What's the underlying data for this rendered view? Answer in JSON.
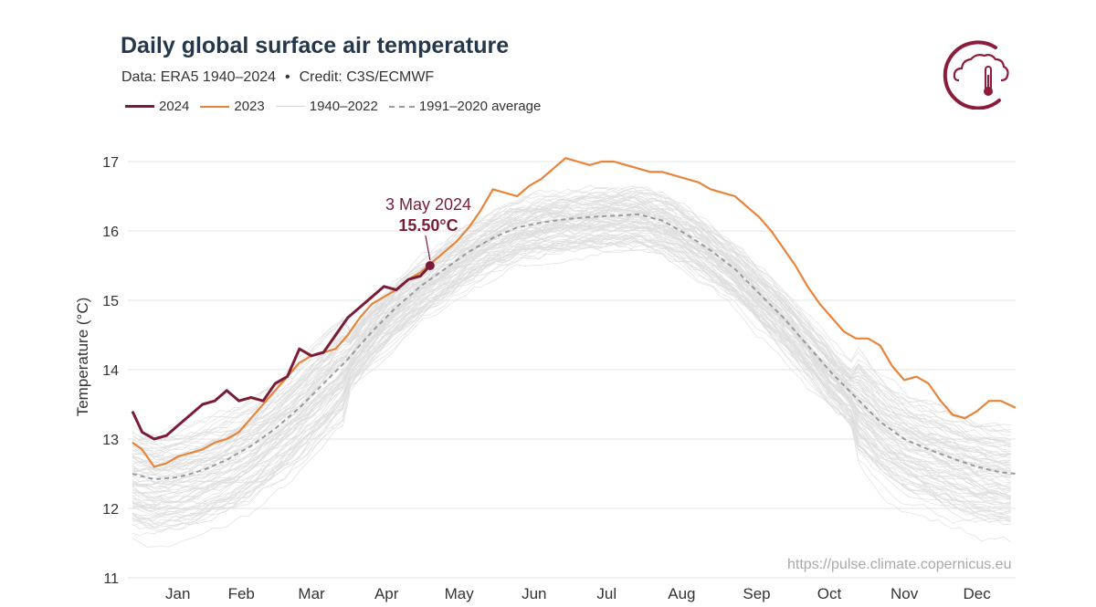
{
  "header": {
    "title": "Daily global surface air temperature",
    "data_label": "Data: ERA5 1940–2024",
    "credit_label": "Credit: C3S/ECMWF",
    "separator": "•"
  },
  "legend": [
    {
      "label": "2024",
      "color": "#7b1c36",
      "style": "solid-thick"
    },
    {
      "label": "2023",
      "color": "#e8843a",
      "style": "solid"
    },
    {
      "label": "1940–2022",
      "color": "#dedede",
      "style": "solid-thin"
    },
    {
      "label": "1991–2020 average",
      "color": "#9a9a9a",
      "style": "dashed"
    }
  ],
  "footer": {
    "url": "https://pulse.climate.copernicus.eu"
  },
  "annotation": {
    "date": "3 May 2024",
    "value": "15.50°C",
    "x_day": 124,
    "y": 15.5
  },
  "colors": {
    "y2024": "#7b1c36",
    "y2023": "#e8843a",
    "history": "#dedede",
    "average": "#9a9a9a",
    "grid": "#e3e3e3",
    "brand": "#8c1d3a"
  },
  "logo": {
    "icon": "cloud-thermometer-icon"
  },
  "chart_data": {
    "type": "line",
    "ylabel": "Temperature (°C)",
    "xlabel": "",
    "ylim": [
      11,
      17.2
    ],
    "xlim_days": [
      1,
      366
    ],
    "yticks": [
      11,
      12,
      13,
      14,
      15,
      16,
      17
    ],
    "month_ticks": [
      "Jan",
      "Feb",
      "Mar",
      "Apr",
      "May",
      "Jun",
      "Jul",
      "Aug",
      "Sep",
      "Oct",
      "Nov",
      "Dec"
    ],
    "grid": "horizontal",
    "series": [
      {
        "name": "2024",
        "days": [
          1,
          5,
          10,
          15,
          20,
          25,
          30,
          35,
          40,
          45,
          50,
          55,
          60,
          65,
          70,
          75,
          80,
          85,
          90,
          95,
          100,
          105,
          110,
          115,
          120,
          124
        ],
        "values": [
          13.4,
          13.1,
          13.0,
          13.05,
          13.2,
          13.35,
          13.5,
          13.55,
          13.7,
          13.55,
          13.6,
          13.55,
          13.8,
          13.9,
          14.3,
          14.2,
          14.25,
          14.5,
          14.75,
          14.9,
          15.05,
          15.2,
          15.15,
          15.3,
          15.35,
          15.5
        ]
      },
      {
        "name": "2023",
        "days": [
          1,
          5,
          10,
          15,
          20,
          25,
          30,
          35,
          40,
          45,
          50,
          55,
          60,
          65,
          70,
          75,
          80,
          85,
          90,
          95,
          100,
          105,
          110,
          115,
          120,
          125,
          130,
          135,
          140,
          145,
          150,
          155,
          160,
          165,
          170,
          175,
          180,
          185,
          190,
          195,
          200,
          205,
          210,
          215,
          220,
          225,
          230,
          235,
          240,
          245,
          250,
          255,
          260,
          265,
          270,
          275,
          280,
          285,
          290,
          295,
          300,
          305,
          310,
          315,
          320,
          325,
          330,
          335,
          340,
          345,
          350,
          355,
          360,
          366
        ],
        "values": [
          12.95,
          12.85,
          12.6,
          12.65,
          12.75,
          12.8,
          12.85,
          12.95,
          13.0,
          13.1,
          13.3,
          13.5,
          13.7,
          13.9,
          14.1,
          14.2,
          14.25,
          14.3,
          14.5,
          14.75,
          14.95,
          15.05,
          15.15,
          15.3,
          15.4,
          15.55,
          15.7,
          15.85,
          16.05,
          16.3,
          16.6,
          16.55,
          16.5,
          16.65,
          16.75,
          16.9,
          17.05,
          17.0,
          16.95,
          17.0,
          17.0,
          16.95,
          16.9,
          16.85,
          16.85,
          16.8,
          16.75,
          16.7,
          16.6,
          16.55,
          16.5,
          16.35,
          16.2,
          16.0,
          15.75,
          15.5,
          15.2,
          14.95,
          14.75,
          14.55,
          14.45,
          14.45,
          14.35,
          14.05,
          13.85,
          13.9,
          13.8,
          13.55,
          13.35,
          13.3,
          13.4,
          13.55,
          13.55,
          13.45
        ]
      },
      {
        "name": "1991–2020 average",
        "days": [
          1,
          10,
          20,
          30,
          40,
          50,
          60,
          70,
          80,
          90,
          100,
          110,
          120,
          130,
          140,
          150,
          160,
          170,
          180,
          190,
          200,
          210,
          220,
          230,
          240,
          250,
          260,
          270,
          280,
          290,
          300,
          310,
          320,
          330,
          340,
          350,
          360,
          366
        ],
        "values": [
          12.5,
          12.42,
          12.45,
          12.55,
          12.7,
          12.9,
          13.15,
          13.45,
          13.8,
          14.15,
          14.55,
          14.9,
          15.2,
          15.45,
          15.7,
          15.9,
          16.05,
          16.12,
          16.17,
          16.2,
          16.22,
          16.24,
          16.15,
          15.95,
          15.72,
          15.45,
          15.1,
          14.75,
          14.35,
          13.95,
          13.6,
          13.25,
          13.0,
          12.85,
          12.72,
          12.6,
          12.52,
          12.5
        ]
      }
    ],
    "historical_band": {
      "name": "1940–2022",
      "count": 83,
      "spread_low": -0.45,
      "spread_high": 0.55
    }
  }
}
